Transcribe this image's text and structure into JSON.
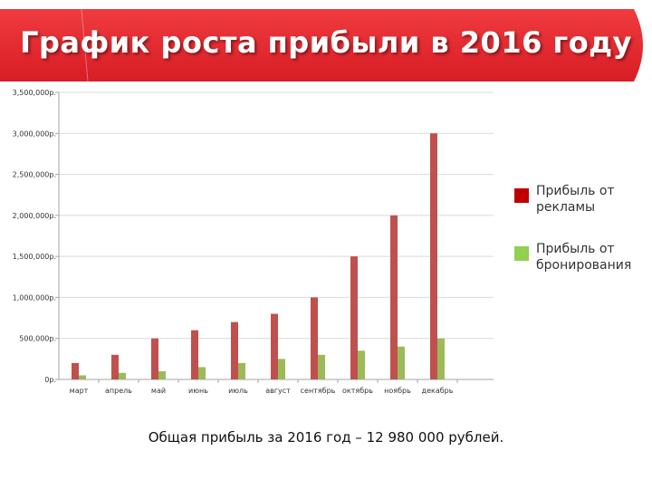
{
  "header": {
    "title": "График роста прибыли в 2016 году"
  },
  "colors": {
    "banner": "#e8252c",
    "banner_dark": "#c5161d",
    "series_1": "#c0504d",
    "series_2": "#9bbb59",
    "grid": "#d9d9d9",
    "axis": "#a6a6a6"
  },
  "chart_data": {
    "type": "bar",
    "categories": [
      "март",
      "апрель",
      "май",
      "июнь",
      "июль",
      "август",
      "сентябрь",
      "октябрь",
      "ноябрь",
      "декабрь"
    ],
    "series": [
      {
        "name": "Прибыль от рекламы",
        "values": [
          200000,
          300000,
          500000,
          600000,
          700000,
          800000,
          1000000,
          1500000,
          2000000,
          3000000
        ]
      },
      {
        "name": "Прибыль от бронирования",
        "values": [
          50000,
          80000,
          100000,
          150000,
          200000,
          250000,
          300000,
          350000,
          400000,
          500000
        ]
      }
    ],
    "y_ticks": [
      "0р.",
      "500,000р.",
      "1,000,000р.",
      "1,500,000р.",
      "2,000,000р.",
      "2,500,000р.",
      "3,000,000р.",
      "3,500,000р."
    ],
    "ylim": [
      0,
      3500000
    ],
    "y_step": 500000,
    "grid": true,
    "legend_position": "right"
  },
  "footer": {
    "text": "Общая прибыль за 2016 год – 12 980 000 рублей."
  }
}
